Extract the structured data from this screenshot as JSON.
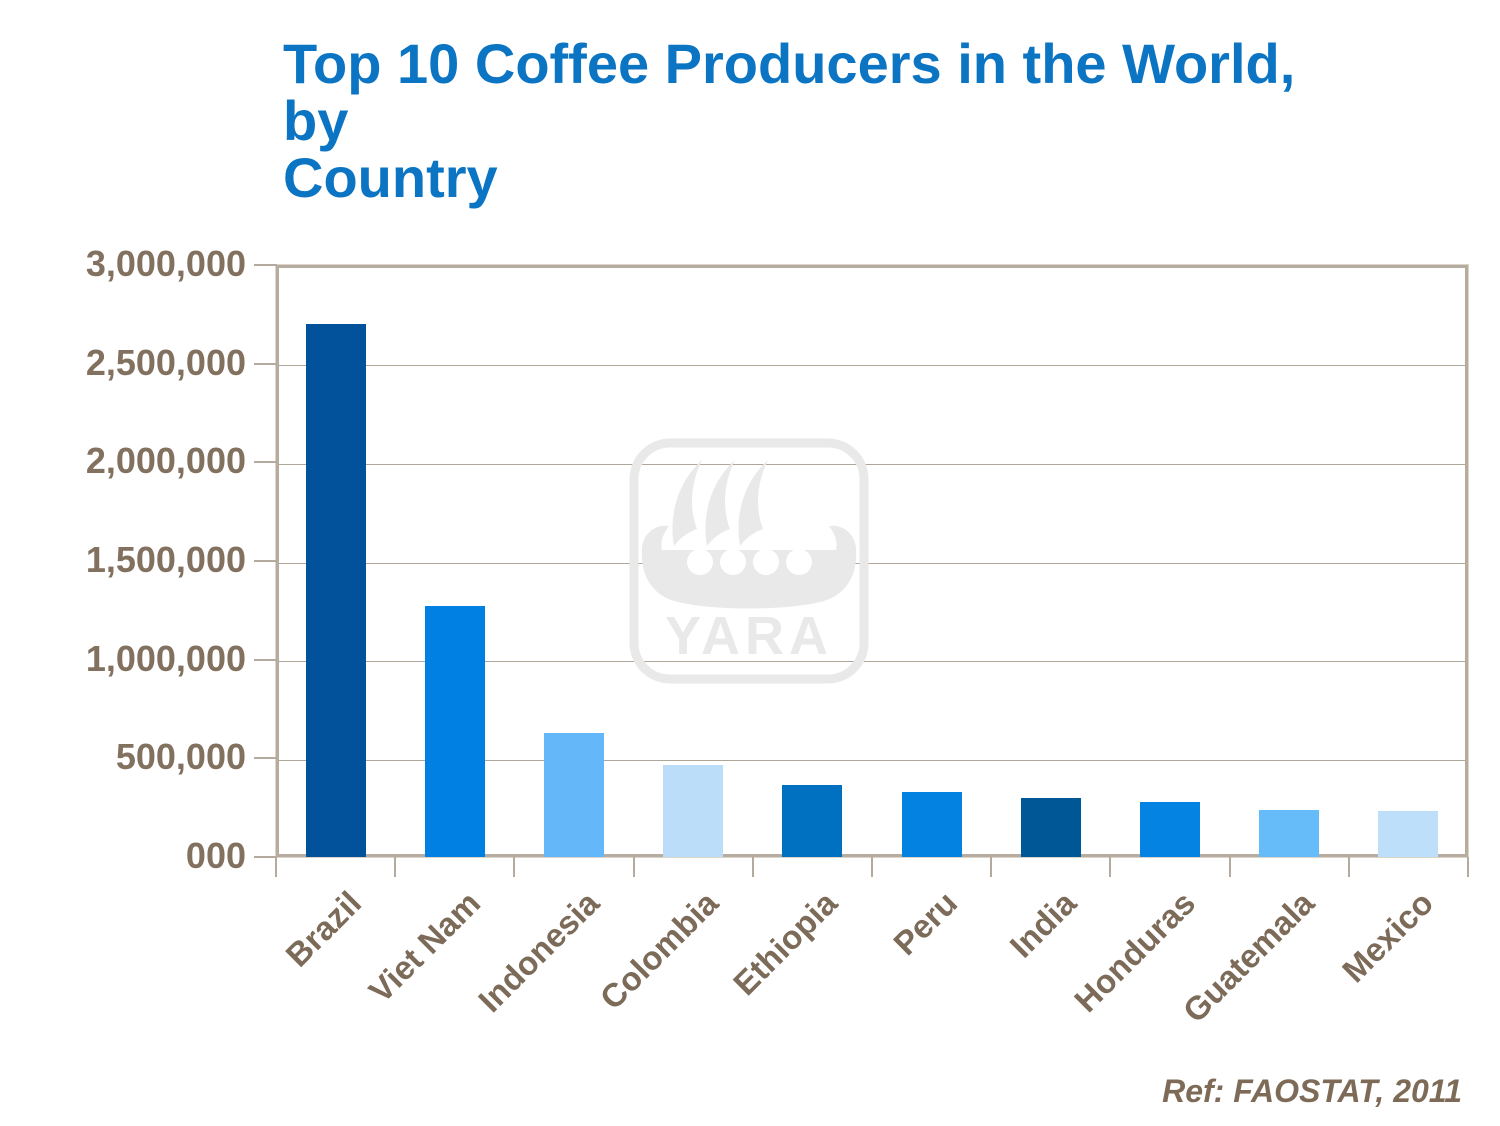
{
  "title": {
    "lines": [
      "Top 10 Coffee Producers in the World, by",
      "Country"
    ],
    "color": "#0B74C3"
  },
  "watermark": {
    "text": "YARA",
    "color": "#E9E9E9"
  },
  "footer": {
    "ref_text": "Ref: FAOSTAT, 2011",
    "color": "#7D6B57"
  },
  "chart_data": {
    "type": "bar",
    "title": "Top 10 Coffee Producers in the World, by Country",
    "xlabel": "",
    "ylabel": "",
    "categories": [
      "Brazil",
      "Viet Nam",
      "Indonesia",
      "Colombia",
      "Ethiopia",
      "Peru",
      "India",
      "Honduras",
      "Guatemala",
      "Mexico"
    ],
    "values": [
      2700000,
      1270000,
      630000,
      465000,
      365000,
      330000,
      300000,
      280000,
      240000,
      235000
    ],
    "bar_colors": [
      "#02529B",
      "#0080E2",
      "#64B8FA",
      "#BBDDFA",
      "#0070C0",
      "#0482E2",
      "#005796",
      "#0483E3",
      "#66BBF9",
      "#BEDFFA"
    ],
    "ylim": [
      0,
      3000000
    ],
    "ytick_interval": 500000,
    "ytick_labels": [
      "000",
      "500,000",
      "1,000,000",
      "1,500,000",
      "2,000,000",
      "2,500,000",
      "3,000,000"
    ],
    "grid": true,
    "legend": false,
    "x_label_rotation_deg": 45,
    "axis_label_color": "#837160",
    "x_label_color": "#7D6B59",
    "gridline_color": "#AFA599",
    "plot_border_color": "#B7ACA0"
  }
}
